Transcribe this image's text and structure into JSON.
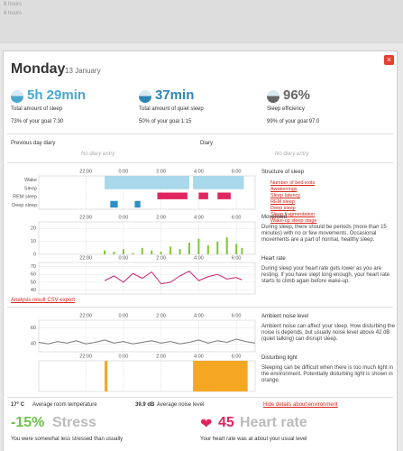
{
  "top_strip": {
    "labels": [
      "8 hours",
      "6 hours"
    ]
  },
  "header": {
    "day": "Monday",
    "date": "13 January"
  },
  "stats": [
    {
      "value": "5h 29min",
      "label": "Total amount of sleep",
      "goal": "73% of your goal 7:30",
      "color": "#4aa8d0"
    },
    {
      "value": "37min",
      "label": "Total amount of quiet sleep",
      "goal": "50% of your goal 1:15",
      "color": "#2f86b5"
    },
    {
      "value": "96%",
      "label": "Sleep efficiency",
      "goal": "99% of your goal 97.0",
      "color": "#666666"
    }
  ],
  "diary": [
    {
      "title": "Previous day diary",
      "entry": "No diary entry"
    },
    {
      "title": "Diary",
      "entry": "No diary entry"
    }
  ],
  "charts": [
    {
      "type": "timeline",
      "xlim": [
        19.5,
        31
      ],
      "xticks": [
        {
          "value": 22,
          "label": "22:00"
        },
        {
          "value": 24,
          "label": "0:00"
        },
        {
          "value": 26,
          "label": "2:00"
        },
        {
          "value": 28,
          "label": "4:00"
        },
        {
          "value": 30,
          "label": "6:00"
        }
      ],
      "lanes": [
        {
          "name": "Wake",
          "color": "#bbbbbb"
        },
        {
          "name": "Sleep",
          "color": "#a8d8ea"
        },
        {
          "name": "REM sleep",
          "color": "#e0245e"
        },
        {
          "name": "Deep sleep",
          "color": "#2f8fc4"
        }
      ],
      "segments": [
        {
          "lane": 1,
          "start": 23.0,
          "end": 27.5
        },
        {
          "lane": 1,
          "start": 27.7,
          "end": 30.4
        },
        {
          "lane": 2,
          "start": 25.8,
          "end": 27.4
        },
        {
          "lane": 2,
          "start": 28.0,
          "end": 28.5
        },
        {
          "lane": 2,
          "start": 29.0,
          "end": 29.7
        },
        {
          "lane": 3,
          "start": 23.3,
          "end": 23.7
        },
        {
          "lane": 3,
          "start": 24.6,
          "end": 24.9
        }
      ]
    },
    {
      "type": "bar",
      "color": "#7dc832",
      "xlim": [
        19.5,
        31
      ],
      "xticks": [
        {
          "value": 22,
          "label": "22:00"
        },
        {
          "value": 24,
          "label": "0:00"
        },
        {
          "value": 26,
          "label": "2:00"
        },
        {
          "value": 28,
          "label": "4:00"
        },
        {
          "value": 30,
          "label": "6:00"
        }
      ],
      "ylim": [
        0,
        25
      ],
      "yticks": [
        0,
        10,
        20
      ],
      "x": [
        23.0,
        23.5,
        24.0,
        24.5,
        25.0,
        25.5,
        26.0,
        26.5,
        27.0,
        27.5,
        28.0,
        28.5,
        29.0,
        29.5,
        30.0,
        30.3
      ],
      "values": [
        3,
        2,
        4,
        1,
        5,
        3,
        2,
        6,
        4,
        9,
        12,
        7,
        10,
        13,
        8,
        5
      ]
    },
    {
      "type": "line",
      "color": "#cc2277",
      "xlim": [
        19.5,
        31
      ],
      "xticks": [
        {
          "value": 22,
          "label": "22:00"
        },
        {
          "value": 24,
          "label": "0:00"
        },
        {
          "value": 26,
          "label": "2:00"
        },
        {
          "value": 28,
          "label": "4:00"
        },
        {
          "value": 30,
          "label": "6:00"
        }
      ],
      "ylim": [
        35,
        75
      ],
      "yticks": [
        40,
        50,
        60,
        70
      ],
      "x": [
        23.0,
        23.5,
        24.0,
        24.5,
        25.0,
        25.5,
        26.0,
        26.5,
        27.0,
        27.5,
        28.0,
        28.5,
        29.0,
        29.5,
        30.0,
        30.3
      ],
      "values": [
        52,
        58,
        50,
        61,
        55,
        63,
        48,
        50,
        58,
        64,
        52,
        57,
        60,
        54,
        56,
        53
      ]
    },
    {
      "type": "line",
      "color": "#777777",
      "xlim": [
        19.5,
        31
      ],
      "xticks": [
        {
          "value": 22,
          "label": "22:00"
        },
        {
          "value": 24,
          "label": "0:00"
        },
        {
          "value": 26,
          "label": "2:00"
        },
        {
          "value": 28,
          "label": "4:00"
        },
        {
          "value": 30,
          "label": "6:00"
        }
      ],
      "ylim": [
        30,
        70
      ],
      "yticks": [
        40,
        60
      ],
      "x": [
        19.5,
        20,
        20.5,
        21,
        21.5,
        22,
        22.5,
        23,
        23.5,
        24,
        24.5,
        25,
        25.5,
        26,
        26.5,
        27,
        27.5,
        28,
        28.5,
        29,
        29.5,
        30,
        30.5,
        31
      ],
      "values": [
        42,
        40,
        43,
        41,
        44,
        40,
        42,
        45,
        41,
        43,
        40,
        42,
        44,
        41,
        43,
        40,
        42,
        45,
        41,
        44,
        42,
        46,
        43,
        41
      ]
    },
    {
      "type": "timeline",
      "xlim": [
        19.5,
        31
      ],
      "xticks": [
        {
          "value": 22,
          "label": "22:00"
        },
        {
          "value": 24,
          "label": "0:00"
        },
        {
          "value": 26,
          "label": "2:00"
        },
        {
          "value": 28,
          "label": "4:00"
        },
        {
          "value": 30,
          "label": "6:00"
        }
      ],
      "lanes": [
        {
          "name": "",
          "color": "#f5a623"
        }
      ],
      "segments": [
        {
          "lane": 0,
          "start": 23.0,
          "end": 23.15
        },
        {
          "lane": 0,
          "start": 27.7,
          "end": 30.6
        }
      ]
    }
  ],
  "sidebar": [
    {
      "title": "Structure of sleep",
      "links": [
        "Number of bed exits",
        "Awakenings",
        "Sleep latency",
        "REM sleep",
        "Deep sleep",
        "Sleep fragmentation",
        "Wake-up sleep stage"
      ]
    },
    {
      "title": "Movement",
      "text": "During sleep, there should be periods (more than 15 minutes) with no or few movements. Occasional movements are a part of normal, healthy sleep."
    },
    {
      "title": "Heart rate",
      "text": "During sleep your heart rate gets lower as you are resting. If you have slept long enough, your heart rate starts to climb again before wake-up."
    },
    {
      "title": "Ambient noise level",
      "text": "Ambient noise can affect your sleep. How disturbing the noise is depends, but usually noise level above 42 dB (quiet talking) can disrupt sleep."
    },
    {
      "title": "Disturbing light",
      "text": "Sleeping can be difficult when there is too much light in the environment. Potentially disturbing light is shown in orange."
    }
  ],
  "csv_link": "Analysis result CSV export",
  "environment": {
    "temperature": "17° C",
    "temperature_label": "Average room temperature",
    "noise": "39.9 dB",
    "noise_label": "Average noise level",
    "hide_link": "Hide details about environment"
  },
  "footer": {
    "stress_value": "-15%",
    "stress_label": "Stress",
    "stress_text": "You were somewhat less stressed than usually",
    "hr_value": "45",
    "hr_label": "Heart rate",
    "hr_text": "Your heart rate was at about your usual level"
  }
}
